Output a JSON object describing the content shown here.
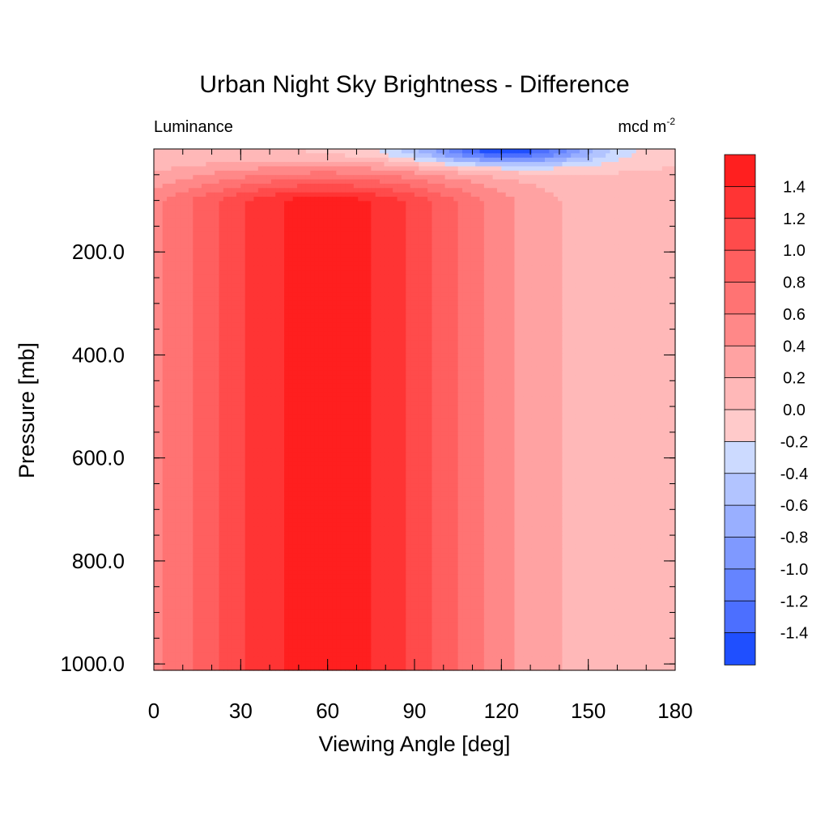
{
  "chart_data": {
    "type": "contour",
    "title": "Urban Night Sky Brightness - Difference",
    "left_string": "Luminance",
    "right_string_base": "mcd m",
    "right_string_exp": "-2",
    "xlabel": "Viewing Angle [deg]",
    "ylabel": "Pressure [mb]",
    "xlim": [
      0,
      180
    ],
    "ylim": [
      1000,
      0
    ],
    "x_ticks": [
      "0",
      "30",
      "60",
      "90",
      "120",
      "150",
      "180"
    ],
    "x_tick_values": [
      0,
      30,
      60,
      90,
      120,
      150,
      180
    ],
    "y_ticks": [
      "200.0",
      "400.0",
      "600.0",
      "800.0",
      "1000.0"
    ],
    "y_tick_values": [
      200,
      400,
      600,
      800,
      1000
    ],
    "colorbar": {
      "labels": [
        "1.4",
        "1.2",
        "1.0",
        "0.8",
        "0.6",
        "0.4",
        "0.2",
        "0.0",
        "-0.2",
        "-0.4",
        "-0.6",
        "-0.8",
        "-1.0",
        "-1.2",
        "-1.4"
      ],
      "colors_top_to_bottom": [
        "#ff1f1f",
        "#ff3434",
        "#ff4b4b",
        "#ff5f5f",
        "#ff7373",
        "#ff8888",
        "#ffa2a2",
        "#ffb8b8",
        "#ffcaca",
        "#ccdaff",
        "#b2c4ff",
        "#99afff",
        "#7f99ff",
        "#6584ff",
        "#4c6fff",
        "#1f4fff"
      ]
    },
    "contour_levels": [
      -1.4,
      -1.2,
      -1.0,
      -0.8,
      -0.6,
      -0.4,
      -0.2,
      0.0,
      0.2,
      0.4,
      0.6,
      0.8,
      1.0,
      1.2,
      1.4
    ],
    "field_description": {
      "max_center_x": 60,
      "max_value": 1.5,
      "positive_extent_x": [
        0,
        115
      ],
      "positive_near_zero_region_x": [
        115,
        180
      ],
      "negative_region": {
        "x_center": 120,
        "pressure_max": 80,
        "min_value": -1.5
      }
    }
  }
}
